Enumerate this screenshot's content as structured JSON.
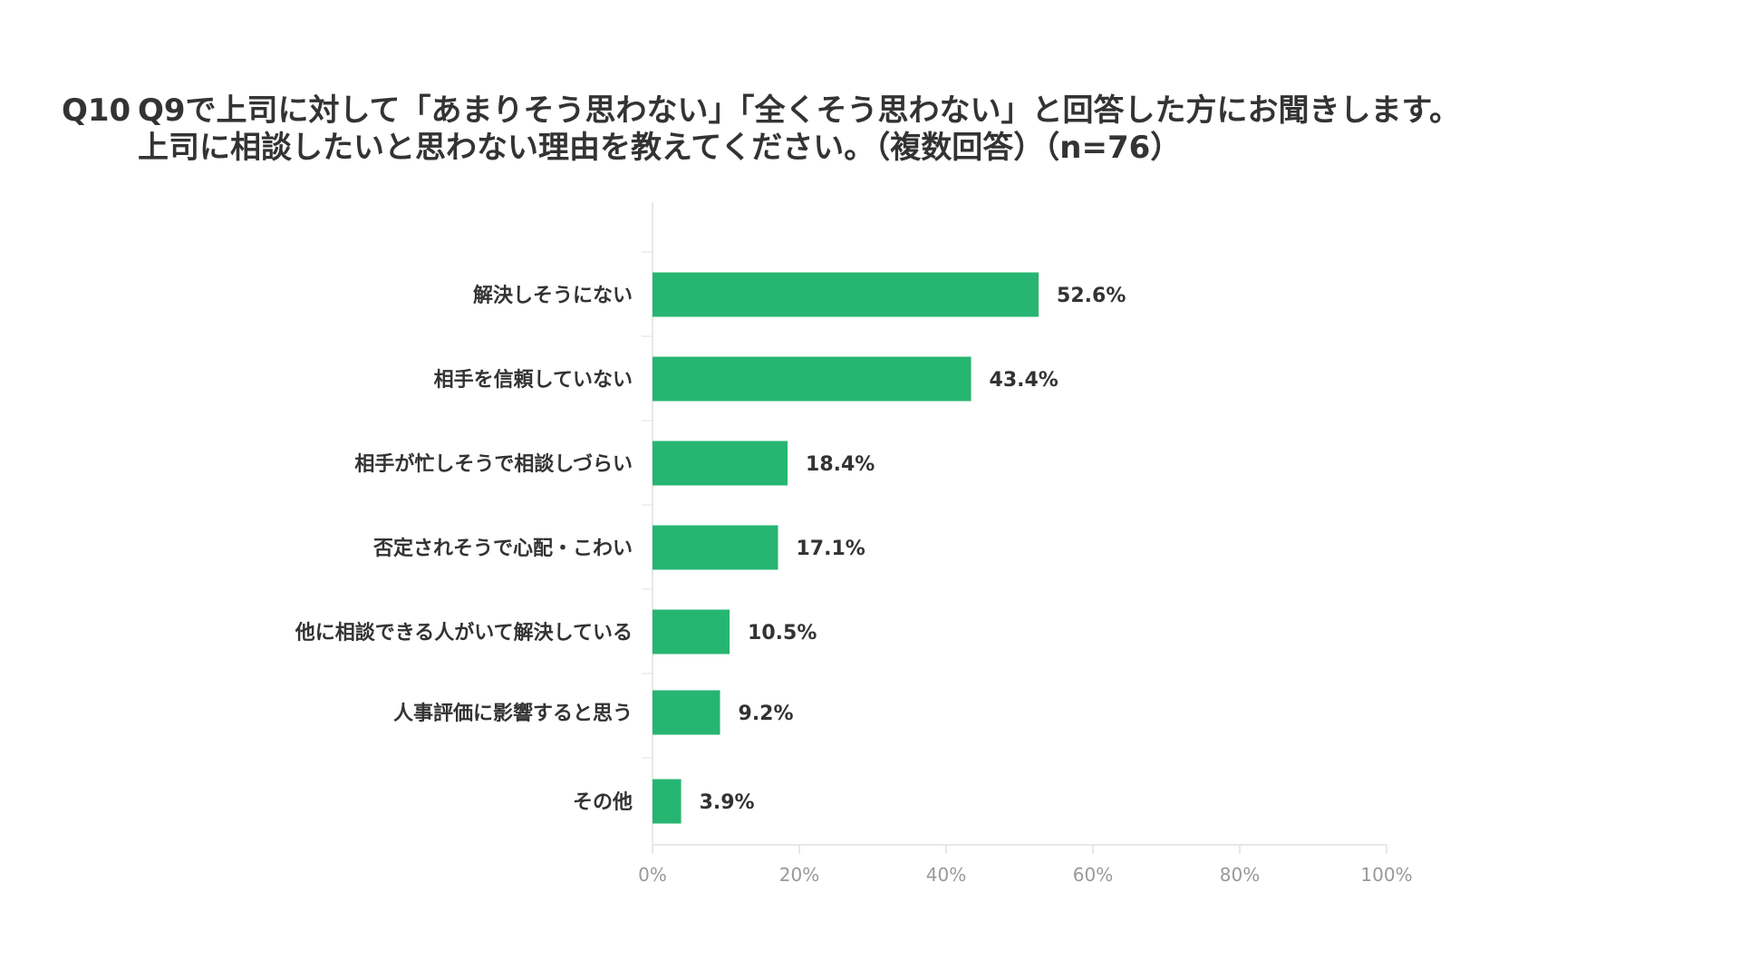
{
  "header": {
    "question_number": "Q10",
    "title_line1": "Q9で上司に対して「あまりそう思わない」「全くそう思わない」と回答した方にお聞きします。",
    "title_line2": "上司に相談したいと思わない理由を教えてください。（複数回答）（n=76）"
  },
  "colors": {
    "bar": "#27b572",
    "text": "#333333",
    "axis_tick": "#999999",
    "grid": "#e0e0e0"
  },
  "chart_data": {
    "type": "bar",
    "orientation": "horizontal",
    "title": "Q9で上司に対して「あまりそう思わない」「全くそう思わない」と回答した方にお聞きします。上司に相談したいと思わない理由を教えてください。（複数回答）（n=76）",
    "categories": [
      "解決しそうにない",
      "相手を信頼していない",
      "相手が忙しそうで相談しづらい",
      "否定されそうで心配・こわい",
      "他に相談できる人がいて解決している",
      "人事評価に影響すると思う",
      "その他"
    ],
    "values": [
      52.6,
      43.4,
      18.4,
      17.1,
      10.5,
      9.2,
      3.9
    ],
    "value_labels": [
      "52.6%",
      "43.4%",
      "18.4%",
      "17.1%",
      "10.5%",
      "9.2%",
      "3.9%"
    ],
    "xlim": [
      0,
      100
    ],
    "x_ticks": [
      "0%",
      "20%",
      "40%",
      "60%",
      "80%",
      "100%"
    ],
    "xlabel": "",
    "ylabel": "",
    "grid": false,
    "legend": "none"
  }
}
